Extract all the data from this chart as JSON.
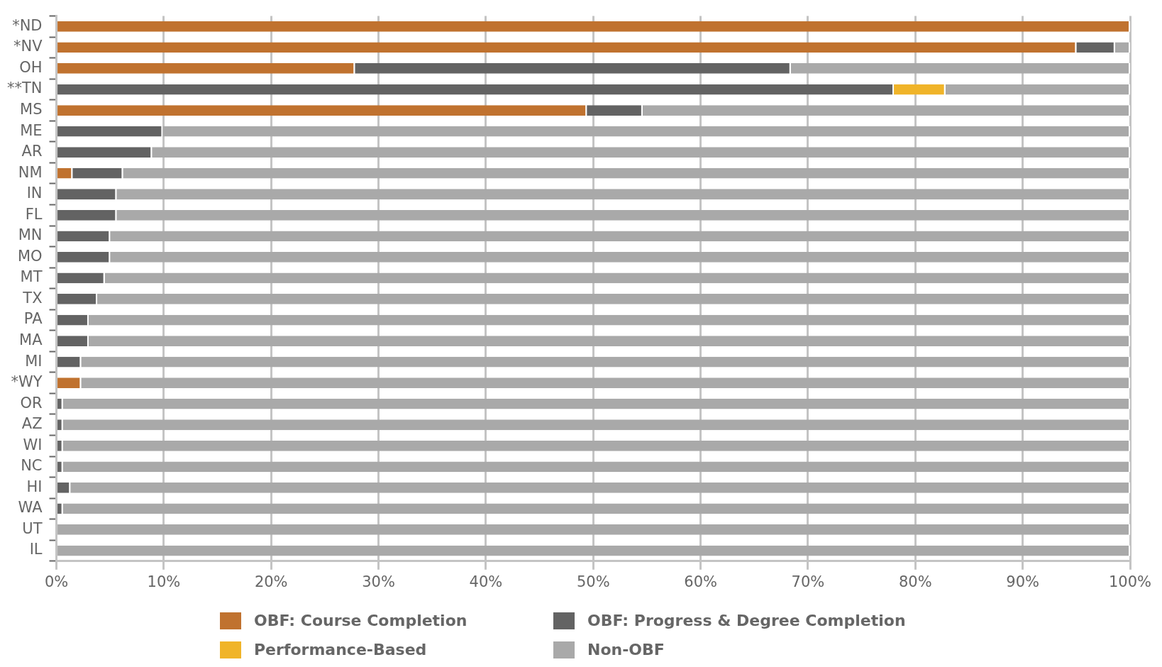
{
  "chart_data": {
    "type": "bar",
    "orientation": "horizontal",
    "stacked": true,
    "categories": [
      "*ND",
      "*NV",
      "OH",
      "**TN",
      "MS",
      "ME",
      "AR",
      "NM",
      "IN",
      "FL",
      "MN",
      "MO",
      "MT",
      "TX",
      "PA",
      "MA",
      "MI",
      "*WY",
      "OR",
      "AZ",
      "WI",
      "NC",
      "HI",
      "WA",
      "UT",
      "IL"
    ],
    "series": [
      {
        "name": "OBF: Course Completion",
        "color": "#c0722f",
        "values": [
          100,
          95,
          27.8,
          0,
          49.4,
          0,
          0,
          1.5,
          0,
          0,
          0,
          0,
          0,
          0,
          0,
          0,
          0,
          2.3,
          0,
          0,
          0,
          0,
          0,
          0,
          0,
          0
        ]
      },
      {
        "name": "OBF: Progress & Degree Completion",
        "color": "#636363",
        "values": [
          0,
          3.6,
          40.6,
          78,
          5.2,
          9.9,
          8.9,
          4.7,
          5.6,
          5.6,
          5,
          5,
          4.5,
          3.8,
          3,
          3,
          2.3,
          0,
          0.6,
          0.6,
          0.6,
          0.6,
          1.3,
          0.6,
          0,
          0
        ]
      },
      {
        "name": "Performance-Based",
        "color": "#f0b429",
        "values": [
          0,
          0,
          0,
          4.8,
          0,
          0,
          0,
          0,
          0,
          0,
          0,
          0,
          0,
          0,
          0,
          0,
          0,
          0,
          0,
          0,
          0,
          0,
          0,
          0,
          0,
          0
        ]
      },
      {
        "name": "Non-OBF",
        "color": "#a9a9a9",
        "values": [
          0,
          1.4,
          31.6,
          17.2,
          45.4,
          90.1,
          91.1,
          93.8,
          94.4,
          94.4,
          95,
          95,
          95.5,
          96.2,
          97,
          97,
          97.7,
          97.7,
          99.4,
          99.4,
          99.4,
          99.4,
          98.7,
          99.4,
          100,
          100
        ]
      }
    ],
    "xlim": [
      0,
      100
    ],
    "xticks": [
      {
        "value": 0,
        "label": "0%"
      },
      {
        "value": 10,
        "label": "10%"
      },
      {
        "value": 20,
        "label": "20%"
      },
      {
        "value": 30,
        "label": "30%"
      },
      {
        "value": 40,
        "label": "40%"
      },
      {
        "value": 50,
        "label": "50%"
      },
      {
        "value": 60,
        "label": "60%"
      },
      {
        "value": 70,
        "label": "70%"
      },
      {
        "value": 80,
        "label": "80%"
      },
      {
        "value": 90,
        "label": "90%"
      },
      {
        "value": 100,
        "label": "100%"
      }
    ],
    "grid": "x",
    "legend": "bottom"
  }
}
